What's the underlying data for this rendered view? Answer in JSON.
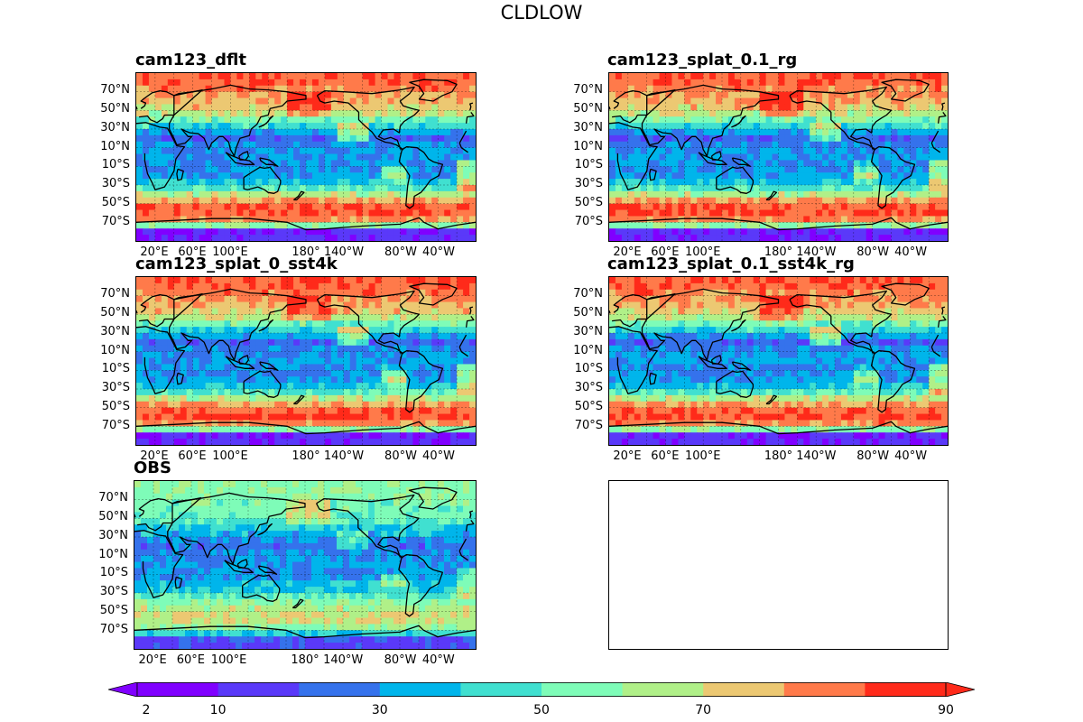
{
  "figure": {
    "title": "CLDLOW"
  },
  "panels": [
    {
      "title": "cam123_dflt",
      "variant": "model",
      "has_xticks": true
    },
    {
      "title": "cam123_splat_0.1_rg",
      "variant": "model",
      "has_xticks": true
    },
    {
      "title": "cam123_splat_0_sst4k",
      "variant": "model",
      "has_xticks": true
    },
    {
      "title": "cam123_splat_0.1_sst4k_rg",
      "variant": "model",
      "has_xticks": true
    },
    {
      "title": "OBS",
      "variant": "obs",
      "has_xticks": true
    }
  ],
  "lat_labels": [
    "70°N",
    "50°N",
    "30°N",
    "10°N",
    "10°S",
    "30°S",
    "50°S",
    "70°S"
  ],
  "lon_labels": [
    "20°E",
    "60°E",
    "100°E",
    "180°",
    "140°W",
    "80°W",
    "40°W"
  ],
  "colorbar": {
    "labels": [
      "2",
      "10",
      "30",
      "50",
      "70",
      "90"
    ],
    "levels": [
      2,
      10,
      20,
      30,
      40,
      50,
      60,
      70,
      80,
      90
    ],
    "colors": [
      "#8000ff",
      "#5a39f9",
      "#3572ec",
      "#00b5eb",
      "#40e0d0",
      "#7efcb8",
      "#b0f088",
      "#ecc872",
      "#ff7a4a",
      "#ff2a1a"
    ],
    "extend": "both"
  },
  "chart_data": {
    "type": "heatmap",
    "variable": "CLDLOW",
    "units_scale": [
      2,
      90
    ],
    "panels": [
      "cam123_dflt",
      "cam123_splat_0.1_rg",
      "cam123_splat_0_sst4k",
      "cam123_splat_0.1_sst4k_rg",
      "OBS"
    ],
    "zonal_profile_model": [
      {
        "lat": 80,
        "value": 88
      },
      {
        "lat": 65,
        "value": 80
      },
      {
        "lat": 50,
        "value": 72
      },
      {
        "lat": 40,
        "value": 55
      },
      {
        "lat": 30,
        "value": 38
      },
      {
        "lat": 20,
        "value": 22
      },
      {
        "lat": 10,
        "value": 30
      },
      {
        "lat": 0,
        "value": 32
      },
      {
        "lat": -10,
        "value": 28
      },
      {
        "lat": -20,
        "value": 32
      },
      {
        "lat": -30,
        "value": 40
      },
      {
        "lat": -40,
        "value": 65
      },
      {
        "lat": -50,
        "value": 88
      },
      {
        "lat": -60,
        "value": 90
      },
      {
        "lat": -70,
        "value": 80
      },
      {
        "lat": -80,
        "value": 12
      }
    ],
    "zonal_profile_obs": [
      {
        "lat": 80,
        "value": 58
      },
      {
        "lat": 65,
        "value": 55
      },
      {
        "lat": 50,
        "value": 52
      },
      {
        "lat": 40,
        "value": 42
      },
      {
        "lat": 30,
        "value": 32
      },
      {
        "lat": 20,
        "value": 25
      },
      {
        "lat": 10,
        "value": 30
      },
      {
        "lat": 0,
        "value": 32
      },
      {
        "lat": -10,
        "value": 30
      },
      {
        "lat": -20,
        "value": 36
      },
      {
        "lat": -30,
        "value": 45
      },
      {
        "lat": -40,
        "value": 58
      },
      {
        "lat": -50,
        "value": 68
      },
      {
        "lat": -60,
        "value": 70
      },
      {
        "lat": -70,
        "value": 55
      },
      {
        "lat": -80,
        "value": 18
      }
    ]
  }
}
